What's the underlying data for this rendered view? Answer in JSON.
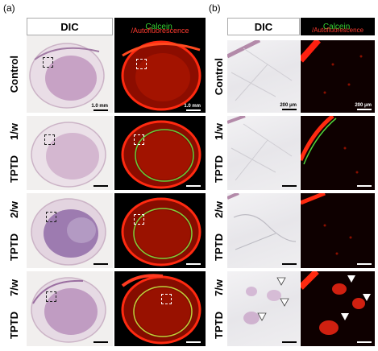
{
  "panel_labels": {
    "a": "(a)",
    "b": "(b)"
  },
  "headers": {
    "dic": "DIC",
    "calcein": "Calcein",
    "slash": "/",
    "autofluorescence": "Autofluorescence"
  },
  "rows": [
    {
      "id": "control",
      "group": "Control",
      "dose": ""
    },
    {
      "id": "w1",
      "group": "TPTD",
      "dose": "1/w"
    },
    {
      "id": "w2",
      "group": "TPTD",
      "dose": "2/w"
    },
    {
      "id": "w7",
      "group": "TPTD",
      "dose": "7/w"
    }
  ],
  "scale_bars": {
    "overview": "1.0 mm",
    "zoom": "200 μm"
  },
  "colors": {
    "calcein": "#34d233",
    "autofluorescence": "#ff3b2f",
    "dic_stain": "#b78fb5"
  }
}
